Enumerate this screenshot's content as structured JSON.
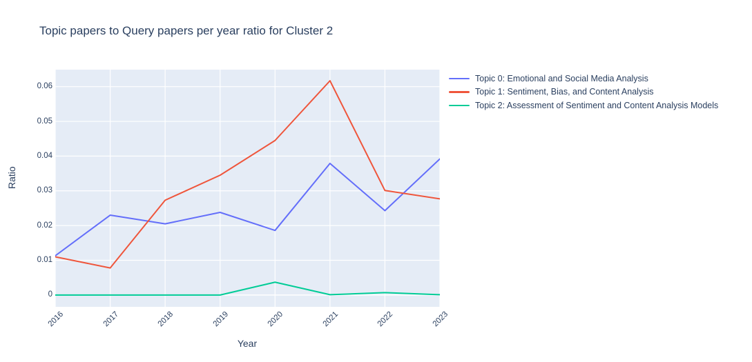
{
  "figure": {
    "background": "#ffffff",
    "plot_background": "#e5ecf6",
    "grid_color": "#ffffff",
    "text_color": "#2a3f5f"
  },
  "chart_data": {
    "type": "line",
    "title": "Topic papers to Query papers per year ratio for Cluster 2",
    "xlabel": "Year",
    "ylabel": "Ratio",
    "categories": [
      "2016",
      "2017",
      "2018",
      "2019",
      "2020",
      "2021",
      "2022",
      "2023"
    ],
    "series": [
      {
        "name": "Topic 0: Emotional and Social Media Analysis",
        "color": "#636efa",
        "values": [
          0.0113,
          0.023,
          0.0205,
          0.0238,
          0.0186,
          0.0379,
          0.0243,
          0.0392
        ]
      },
      {
        "name": "Topic 1: Sentiment, Bias, and Content Analysis",
        "color": "#ef553b",
        "values": [
          0.011,
          0.0078,
          0.0273,
          0.0345,
          0.0445,
          0.0617,
          0.0301,
          0.0277
        ]
      },
      {
        "name": "Topic 2: Assessment of Sentiment and Content Analysis Models",
        "color": "#00cc96",
        "values": [
          0.0,
          0.0,
          0.0,
          0.0,
          0.0037,
          0.0001,
          0.0007,
          0.0001
        ]
      }
    ],
    "yticks": [
      0,
      0.01,
      0.02,
      0.03,
      0.04,
      0.05,
      0.06
    ],
    "ytick_labels": [
      "0",
      "0.01",
      "0.02",
      "0.03",
      "0.04",
      "0.05",
      "0.06"
    ],
    "ylim": [
      -0.0034,
      0.0649
    ],
    "grid": true,
    "legend_position": "right"
  }
}
